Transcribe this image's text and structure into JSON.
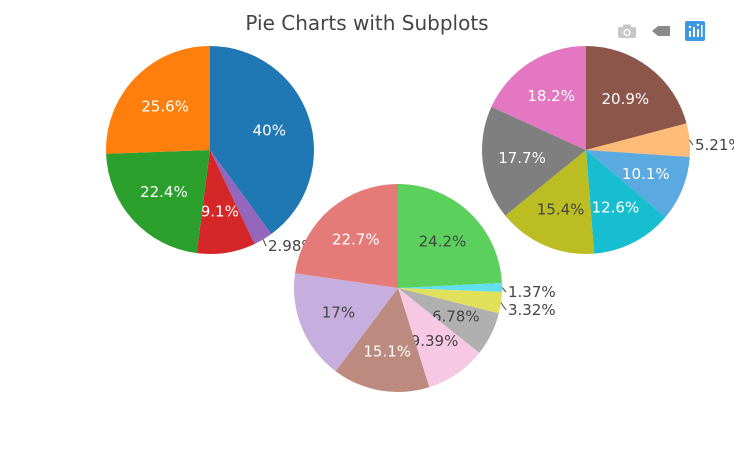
{
  "chart_data": {
    "type": "pie",
    "title": "Pie Charts with Subplots",
    "pies": [
      {
        "labels": [],
        "values": [
          40,
          2.98,
          9.1,
          22.4,
          25.6
        ],
        "text": [
          "40%",
          "2.98%",
          "9.1%",
          "22.4%",
          "25.6%"
        ],
        "colors": [
          "#1f77b4",
          "#9467bd",
          "#d62728",
          "#2ca02c",
          "#ff7f0e"
        ]
      },
      {
        "labels": [],
        "values": [
          20.9,
          5.21,
          10.1,
          12.6,
          15.4,
          17.7,
          18.2
        ],
        "text": [
          "20.9%",
          "5.21%",
          "10.1%",
          "12.6%",
          "15.4%",
          "17.7%",
          "18.2%"
        ],
        "colors": [
          "#8c564b",
          "#ffbb78",
          "#5aa9e0",
          "#17becf",
          "#bcbd22",
          "#7f7f7f",
          "#e377c2"
        ]
      },
      {
        "labels": [],
        "values": [
          24.2,
          1.37,
          3.32,
          6.78,
          9.39,
          15.1,
          17,
          22.7
        ],
        "text": [
          "24.2%",
          "1.37%",
          "3.32%",
          "6.78%",
          "9.39%",
          "15.1%",
          "17%",
          "22.7%"
        ],
        "colors": [
          "#5cd05c",
          "#5fdfef",
          "#e0e05a",
          "#b0b0b0",
          "#f6c8e4",
          "#bc8a7e",
          "#c6aede",
          "#e57b79"
        ]
      }
    ]
  },
  "modebar": {
    "icons": [
      "camera-icon",
      "pan-icon",
      "plotly-logo-icon"
    ]
  }
}
